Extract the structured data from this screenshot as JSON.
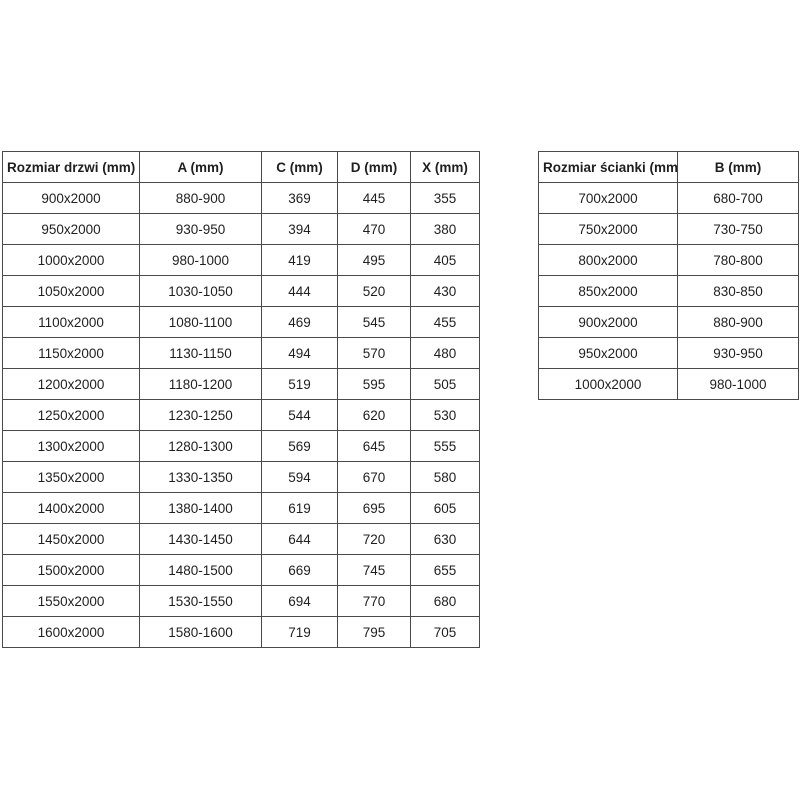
{
  "colors": {
    "background": "#ffffff",
    "border": "#4a4a4a",
    "text": "#1f1f1f"
  },
  "tables": [
    {
      "name": "door-sizes",
      "headers": [
        "Rozmiar drzwi (mm)",
        "A (mm)",
        "C (mm)",
        "D (mm)",
        "X (mm)"
      ],
      "rows": [
        [
          "900x2000",
          "880-900",
          "369",
          "445",
          "355"
        ],
        [
          "950x2000",
          "930-950",
          "394",
          "470",
          "380"
        ],
        [
          "1000x2000",
          "980-1000",
          "419",
          "495",
          "405"
        ],
        [
          "1050x2000",
          "1030-1050",
          "444",
          "520",
          "430"
        ],
        [
          "1100x2000",
          "1080-1100",
          "469",
          "545",
          "455"
        ],
        [
          "1150x2000",
          "1130-1150",
          "494",
          "570",
          "480"
        ],
        [
          "1200x2000",
          "1180-1200",
          "519",
          "595",
          "505"
        ],
        [
          "1250x2000",
          "1230-1250",
          "544",
          "620",
          "530"
        ],
        [
          "1300x2000",
          "1280-1300",
          "569",
          "645",
          "555"
        ],
        [
          "1350x2000",
          "1330-1350",
          "594",
          "670",
          "580"
        ],
        [
          "1400x2000",
          "1380-1400",
          "619",
          "695",
          "605"
        ],
        [
          "1450x2000",
          "1430-1450",
          "644",
          "720",
          "630"
        ],
        [
          "1500x2000",
          "1480-1500",
          "669",
          "745",
          "655"
        ],
        [
          "1550x2000",
          "1530-1550",
          "694",
          "770",
          "680"
        ],
        [
          "1600x2000",
          "1580-1600",
          "719",
          "795",
          "705"
        ]
      ]
    },
    {
      "name": "wall-panel-sizes",
      "headers": [
        "Rozmiar ścianki (mm)",
        "B (mm)"
      ],
      "rows": [
        [
          "700x2000",
          "680-700"
        ],
        [
          "750x2000",
          "730-750"
        ],
        [
          "800x2000",
          "780-800"
        ],
        [
          "850x2000",
          "830-850"
        ],
        [
          "900x2000",
          "880-900"
        ],
        [
          "950x2000",
          "930-950"
        ],
        [
          "1000x2000",
          "980-1000"
        ]
      ]
    }
  ]
}
